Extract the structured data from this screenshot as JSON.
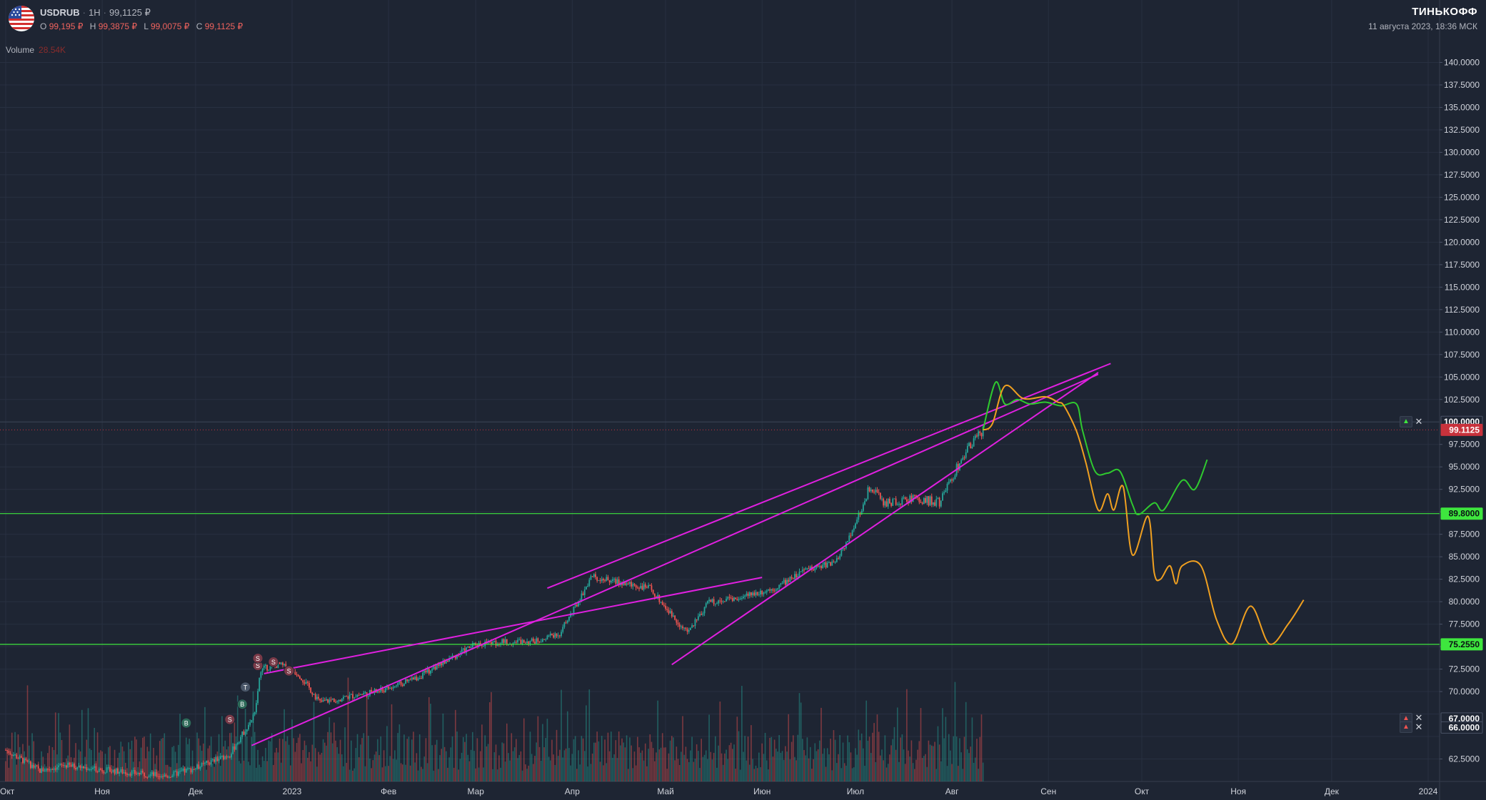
{
  "header": {
    "symbol": "USDRUB",
    "interval": "1H",
    "last_price": "99,1125 ₽",
    "ohlc": [
      {
        "key": "O",
        "value": "99,195 ₽"
      },
      {
        "key": "H",
        "value": "99,3875 ₽"
      },
      {
        "key": "L",
        "value": "99,0075 ₽"
      },
      {
        "key": "C",
        "value": "99,1125 ₽"
      }
    ],
    "volume_label": "Volume",
    "volume_value": "28.54K",
    "flag_icon": "us-flag-icon"
  },
  "branding": {
    "name": "ТИНЬКОФФ",
    "timestamp": "11 августа 2023, 18:36 МСК"
  },
  "colors": {
    "background": "#1e2533",
    "up": "#26a69a",
    "down": "#ef5350",
    "trendline": "#e020e0",
    "level": "#3ee63e",
    "projection_bull": "#2fc92f",
    "projection_bear": "#f0a020",
    "last_price_label": "#c8323c",
    "scale_text": "#d1d4dc"
  },
  "chart_data": {
    "type": "candlestick",
    "title": "",
    "ylim": [
      60,
      142.5
    ],
    "y_ticks": [
      62.5,
      65,
      67.5,
      70,
      72.5,
      75,
      77.5,
      80,
      82.5,
      85,
      87.5,
      90,
      92.5,
      95,
      97.5,
      100,
      102.5,
      105,
      107.5,
      110,
      112.5,
      115,
      117.5,
      120,
      122.5,
      125,
      127.5,
      130,
      132.5,
      135,
      137.5,
      140
    ],
    "y_ticks_visible": [
      "62.5000",
      "70.0000",
      "72.5000",
      "75.0000",
      "77.5000",
      "80.0000",
      "82.5000",
      "85.0000",
      "87.5000",
      "90.0000",
      "92.5000",
      "95.0000",
      "97.5000",
      "102.5000",
      "105.0000",
      "107.5000",
      "110.0000",
      "112.5000",
      "115.0000",
      "117.5000",
      "120.0000",
      "122.5000",
      "125.0000",
      "127.5000",
      "130.0000",
      "132.5000",
      "135.0000",
      "137.5000",
      "140.0000"
    ],
    "x_ticks": [
      {
        "label": "Окт",
        "date": "2022-10-01"
      },
      {
        "label": "Ноя",
        "date": "2022-11-01"
      },
      {
        "label": "Дек",
        "date": "2022-12-01"
      },
      {
        "label": "2023",
        "date": "2023-01-01"
      },
      {
        "label": "Фев",
        "date": "2023-02-01"
      },
      {
        "label": "Мар",
        "date": "2023-03-01"
      },
      {
        "label": "Апр",
        "date": "2023-04-01"
      },
      {
        "label": "Май",
        "date": "2023-05-01"
      },
      {
        "label": "Июн",
        "date": "2023-06-01"
      },
      {
        "label": "Июл",
        "date": "2023-07-01"
      },
      {
        "label": "Авг",
        "date": "2023-08-01"
      },
      {
        "label": "Сен",
        "date": "2023-09-01"
      },
      {
        "label": "Окт",
        "date": "2023-10-01"
      },
      {
        "label": "Ноя",
        "date": "2023-11-01"
      },
      {
        "label": "Дек",
        "date": "2023-12-01"
      },
      {
        "label": "2024",
        "date": "2024-01-01"
      }
    ],
    "price_path": [
      [
        "2022-10-01",
        63.5
      ],
      [
        "2022-10-12",
        61.2
      ],
      [
        "2022-10-20",
        61.8
      ],
      [
        "2022-11-01",
        61.3
      ],
      [
        "2022-11-12",
        60.9
      ],
      [
        "2022-11-22",
        60.6
      ],
      [
        "2022-12-01",
        61.5
      ],
      [
        "2022-12-12",
        63.0
      ],
      [
        "2022-12-20",
        67.5
      ],
      [
        "2022-12-22",
        72.5
      ],
      [
        "2022-12-28",
        73.0
      ],
      [
        "2023-01-03",
        72.0
      ],
      [
        "2023-01-10",
        68.8
      ],
      [
        "2023-01-20",
        69.5
      ],
      [
        "2023-01-31",
        70.2
      ],
      [
        "2023-02-10",
        71.5
      ],
      [
        "2023-02-20",
        73.5
      ],
      [
        "2023-03-01",
        75.3
      ],
      [
        "2023-03-10",
        75.5
      ],
      [
        "2023-03-20",
        75.6
      ],
      [
        "2023-03-28",
        76.5
      ],
      [
        "2023-04-03",
        80.0
      ],
      [
        "2023-04-07",
        82.8
      ],
      [
        "2023-04-15",
        82.2
      ],
      [
        "2023-04-26",
        81.5
      ],
      [
        "2023-05-03",
        78.5
      ],
      [
        "2023-05-08",
        76.5
      ],
      [
        "2023-05-15",
        80.0
      ],
      [
        "2023-05-25",
        80.5
      ],
      [
        "2023-06-05",
        81.5
      ],
      [
        "2023-06-15",
        83.5
      ],
      [
        "2023-06-25",
        84.5
      ],
      [
        "2023-06-30",
        88.0
      ],
      [
        "2023-07-06",
        93.0
      ],
      [
        "2023-07-10",
        91.0
      ],
      [
        "2023-07-20",
        91.5
      ],
      [
        "2023-07-28",
        91.0
      ],
      [
        "2023-08-05",
        96.5
      ],
      [
        "2023-08-11",
        99.1125
      ]
    ],
    "volume_bars": "synthetic histogram, relative heights only",
    "trendlines": [
      {
        "from": [
          "2022-12-19",
          64.0
        ],
        "to": [
          "2023-09-17",
          105.3
        ]
      },
      {
        "from": [
          "2022-12-23",
          72.0
        ],
        "to": [
          "2023-06-01",
          82.7
        ]
      },
      {
        "from": [
          "2023-03-24",
          81.5
        ],
        "to": [
          "2023-09-21",
          106.5
        ]
      },
      {
        "from": [
          "2023-05-03",
          73.0
        ],
        "to": [
          "2023-09-17",
          105.5
        ]
      }
    ],
    "levels": [
      89.8,
      75.255
    ],
    "alerts": [
      100.0,
      67.0,
      66.0
    ],
    "price_labels": [
      {
        "value": 100.0,
        "text": "100.0000",
        "style": "outline"
      },
      {
        "value": 99.1125,
        "text": "99.1125",
        "style": "last"
      },
      {
        "value": 89.8,
        "text": "89.8000",
        "style": "level"
      },
      {
        "value": 75.255,
        "text": "75.2550",
        "style": "level"
      },
      {
        "value": 67.0,
        "text": "67.0000",
        "style": "outline"
      },
      {
        "value": 66.0,
        "text": "66.0000",
        "style": "outline"
      }
    ],
    "projections": [
      {
        "name": "",
        "color": "bull",
        "points": [
          [
            "2023-08-11",
            99.1
          ],
          [
            "2023-08-15",
            104.4
          ],
          [
            "2023-08-18",
            102.0
          ],
          [
            "2023-08-22",
            102.5
          ],
          [
            "2023-08-26",
            102.0
          ],
          [
            "2023-08-31",
            102.2
          ],
          [
            "2023-09-05",
            101.8
          ],
          [
            "2023-09-10",
            102.0
          ],
          [
            "2023-09-12",
            99.0
          ],
          [
            "2023-09-16",
            94.5
          ],
          [
            "2023-09-20",
            94.3
          ],
          [
            "2023-09-24",
            94.5
          ],
          [
            "2023-09-28",
            90.8
          ],
          [
            "2023-09-30",
            89.7
          ],
          [
            "2023-10-05",
            91.0
          ],
          [
            "2023-10-08",
            90.2
          ],
          [
            "2023-10-14",
            93.5
          ],
          [
            "2023-10-18",
            92.5
          ],
          [
            "2023-10-22",
            95.8
          ]
        ]
      },
      {
        "name": "",
        "color": "bear",
        "points": [
          [
            "2023-08-11",
            99.1
          ],
          [
            "2023-08-14",
            99.8
          ],
          [
            "2023-08-18",
            104.0
          ],
          [
            "2023-08-24",
            102.6
          ],
          [
            "2023-08-31",
            102.8
          ],
          [
            "2023-09-04",
            102.2
          ],
          [
            "2023-09-06",
            101.8
          ],
          [
            "2023-09-10",
            99.0
          ],
          [
            "2023-09-13",
            95.5
          ],
          [
            "2023-09-17",
            90.2
          ],
          [
            "2023-09-20",
            92.0
          ],
          [
            "2023-09-22",
            90.2
          ],
          [
            "2023-09-25",
            92.8
          ],
          [
            "2023-09-28",
            85.2
          ],
          [
            "2023-10-03",
            89.5
          ],
          [
            "2023-10-05",
            83.2
          ],
          [
            "2023-10-07",
            82.5
          ],
          [
            "2023-10-10",
            84.0
          ],
          [
            "2023-10-12",
            82.0
          ],
          [
            "2023-10-14",
            84.0
          ],
          [
            "2023-10-20",
            84.0
          ],
          [
            "2023-10-25",
            78.0
          ],
          [
            "2023-10-30",
            75.3
          ],
          [
            "2023-11-05",
            79.5
          ],
          [
            "2023-11-11",
            75.3
          ],
          [
            "2023-11-17",
            77.5
          ],
          [
            "2023-11-22",
            80.2
          ]
        ]
      }
    ],
    "signal_markers": [
      {
        "date": "2022-11-28",
        "value": 66.5,
        "letter": "B",
        "kind": "buy"
      },
      {
        "date": "2022-12-12",
        "value": 66.9,
        "letter": "S",
        "kind": "sell"
      },
      {
        "date": "2022-12-16",
        "value": 68.6,
        "letter": "B",
        "kind": "buy"
      },
      {
        "date": "2022-12-17",
        "value": 70.5,
        "letter": "T",
        "kind": "neutral"
      },
      {
        "date": "2022-12-21",
        "value": 72.9,
        "letter": "S",
        "kind": "sell"
      },
      {
        "date": "2022-12-21",
        "value": 73.7,
        "letter": "S",
        "kind": "sell"
      },
      {
        "date": "2022-12-26",
        "value": 73.3,
        "letter": "S",
        "kind": "sell"
      },
      {
        "date": "2022-12-31",
        "value": 72.3,
        "letter": "S",
        "kind": "sell"
      }
    ]
  }
}
